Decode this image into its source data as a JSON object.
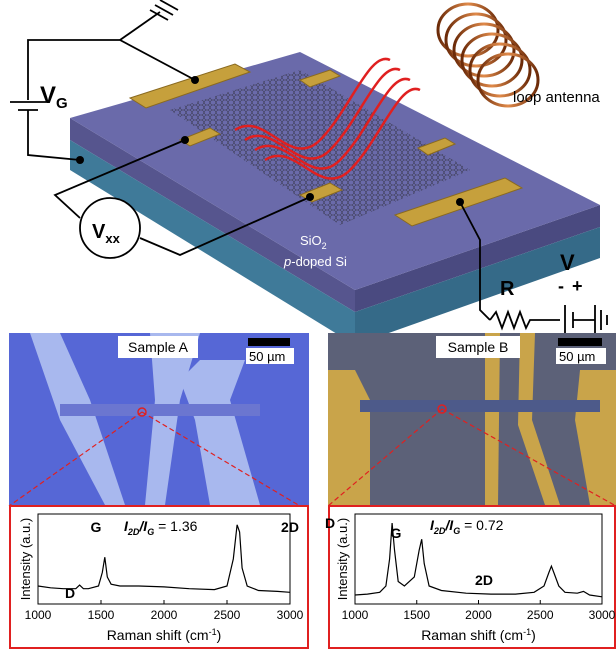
{
  "schematic": {
    "gate_v": "V",
    "gate_sub": "G",
    "vxx": "V",
    "vxx_sub": "xx",
    "oxide": "SiO",
    "oxide_sub": "2",
    "substrate_p": "p",
    "substrate_rest": "-doped Si",
    "antenna": "loop antenna",
    "resistor": "R",
    "source": "V",
    "minus": "-",
    "plus": "+"
  },
  "panels": [
    {
      "sample": "Sample A",
      "scale_bar": "50 µm",
      "spectrum": {
        "ylabel": "Intensity (a.u.)",
        "xlabel": "Raman shift (cm",
        "xlabel_sup": "-1",
        "xlabel_end": ")",
        "ratio": {
          "i1": "I",
          "s1": "2D",
          "slash": "/I",
          "s2": "G",
          "value": " = 1.36"
        },
        "peaks": [
          "D",
          "G",
          "2D"
        ],
        "xlim": [
          1000,
          3000
        ],
        "xticks": [
          1000,
          1500,
          2000,
          2500,
          3000
        ],
        "ylim": [
          0,
          1
        ],
        "x": [
          1000,
          1100,
          1200,
          1300,
          1330,
          1360,
          1400,
          1480,
          1510,
          1530,
          1550,
          1580,
          1650,
          1800,
          2000,
          2200,
          2400,
          2500,
          2550,
          2580,
          2600,
          2620,
          2660,
          2750,
          2900,
          3000
        ],
        "y": [
          0.2,
          0.18,
          0.17,
          0.17,
          0.21,
          0.17,
          0.17,
          0.2,
          0.35,
          0.52,
          0.3,
          0.22,
          0.2,
          0.2,
          0.19,
          0.17,
          0.16,
          0.2,
          0.5,
          0.88,
          0.8,
          0.4,
          0.2,
          0.15,
          0.14,
          0.13
        ]
      }
    },
    {
      "sample": "Sample B",
      "scale_bar": "50 µm",
      "spectrum": {
        "ylabel": "Intensity (a.u.)",
        "xlabel": "Raman shift (cm",
        "xlabel_sup": "-1",
        "xlabel_end": ")",
        "ratio": {
          "i1": "I",
          "s1": "2D",
          "slash": "/I",
          "s2": "G",
          "value": " = 0.72"
        },
        "peaks": [
          "D",
          "G",
          "2D"
        ],
        "xlim": [
          1000,
          3000
        ],
        "xticks": [
          1000,
          1500,
          2000,
          2500,
          3000
        ],
        "ylim": [
          0,
          1
        ],
        "x": [
          1000,
          1100,
          1200,
          1250,
          1280,
          1300,
          1320,
          1350,
          1400,
          1480,
          1520,
          1540,
          1560,
          1600,
          1700,
          1900,
          2100,
          2300,
          2450,
          2530,
          2570,
          2590,
          2610,
          2650,
          2700,
          2800,
          2850,
          2900,
          3000
        ],
        "y": [
          0.1,
          0.11,
          0.13,
          0.2,
          0.5,
          0.9,
          0.6,
          0.25,
          0.2,
          0.3,
          0.6,
          0.72,
          0.45,
          0.2,
          0.15,
          0.12,
          0.11,
          0.11,
          0.13,
          0.2,
          0.35,
          0.42,
          0.35,
          0.2,
          0.13,
          0.12,
          0.14,
          0.1,
          0.08
        ]
      }
    }
  ]
}
